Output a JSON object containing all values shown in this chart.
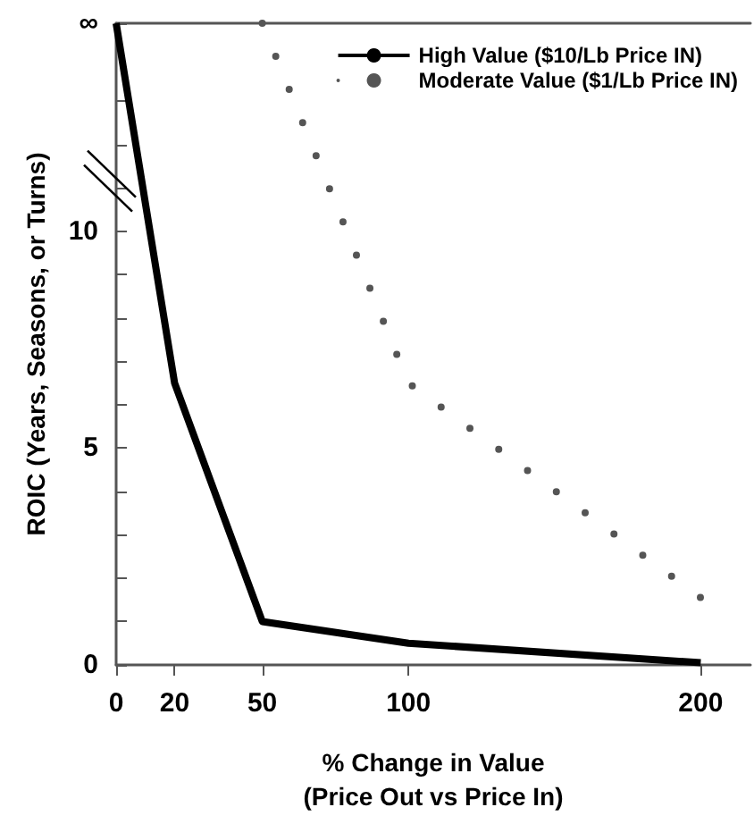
{
  "chart_data": {
    "type": "line",
    "xlabel": "% Change in Value\n(Price Out vs Price In)",
    "ylabel": "ROIC (Years, Seasons, or Turns)",
    "xlim": [
      0,
      217
    ],
    "xticks": [
      0,
      20,
      50,
      100,
      200
    ],
    "ylim": [
      0,
      14.8
    ],
    "yticks": [
      0,
      {
        "value": 1,
        "label": null
      },
      {
        "value": 2,
        "label": null
      },
      {
        "value": 3,
        "label": null
      },
      {
        "value": 4,
        "label": null
      },
      5,
      {
        "value": 6,
        "label": null
      },
      {
        "value": 7,
        "label": null
      },
      {
        "value": 8,
        "label": null
      },
      {
        "value": 9,
        "label": null
      },
      10,
      {
        "value": 11,
        "label": null
      },
      {
        "value": 12,
        "label": null
      },
      {
        "value": 13,
        "label": null
      },
      {
        "value": 14.8,
        "label": "∞"
      }
    ],
    "legend": "top right",
    "grid": false,
    "marker": "none",
    "series": [
      {
        "name": "High Value ($10/Lb Price IN)",
        "color": "#000000",
        "line_style": "solid",
        "x": [
          0,
          20,
          50,
          100,
          200
        ],
        "values": [
          14.8,
          6.5,
          1.0,
          0.5,
          0.05
        ]
      },
      {
        "name": "Moderate Value ($1/Lb Price IN)",
        "color": "#555555",
        "line_style": "dotted",
        "x": [
          50,
          100,
          200
        ],
        "values": [
          14.8,
          6.5,
          1.55
        ]
      }
    ]
  }
}
